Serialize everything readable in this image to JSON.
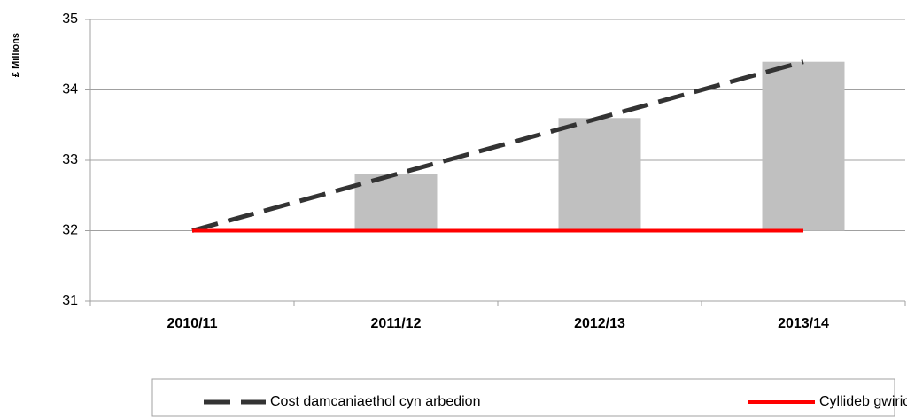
{
  "chart_data": {
    "type": "bar",
    "y_label": "£ Millions",
    "categories": [
      "2010/11",
      "2011/12",
      "2012/13",
      "2013/14"
    ],
    "ylim": [
      31,
      35
    ],
    "yticks": [
      31,
      32,
      33,
      34,
      35
    ],
    "grid": true,
    "bars": {
      "color": "#c0c0c0",
      "values": [
        0,
        0.8,
        1.6,
        2.4
      ],
      "stacked_on": 1
    },
    "series": [
      {
        "name": "Cost damcaniaethol cyn arbedion",
        "type": "line",
        "color": "#333333",
        "dashed": true,
        "values": [
          32,
          32.8,
          33.6,
          34.4
        ]
      },
      {
        "name": "Cyllideb gwirioneddol",
        "type": "line",
        "color": "#ff0000",
        "dashed": false,
        "values": [
          32,
          32,
          32,
          32
        ]
      }
    ],
    "legend": "bottom"
  }
}
